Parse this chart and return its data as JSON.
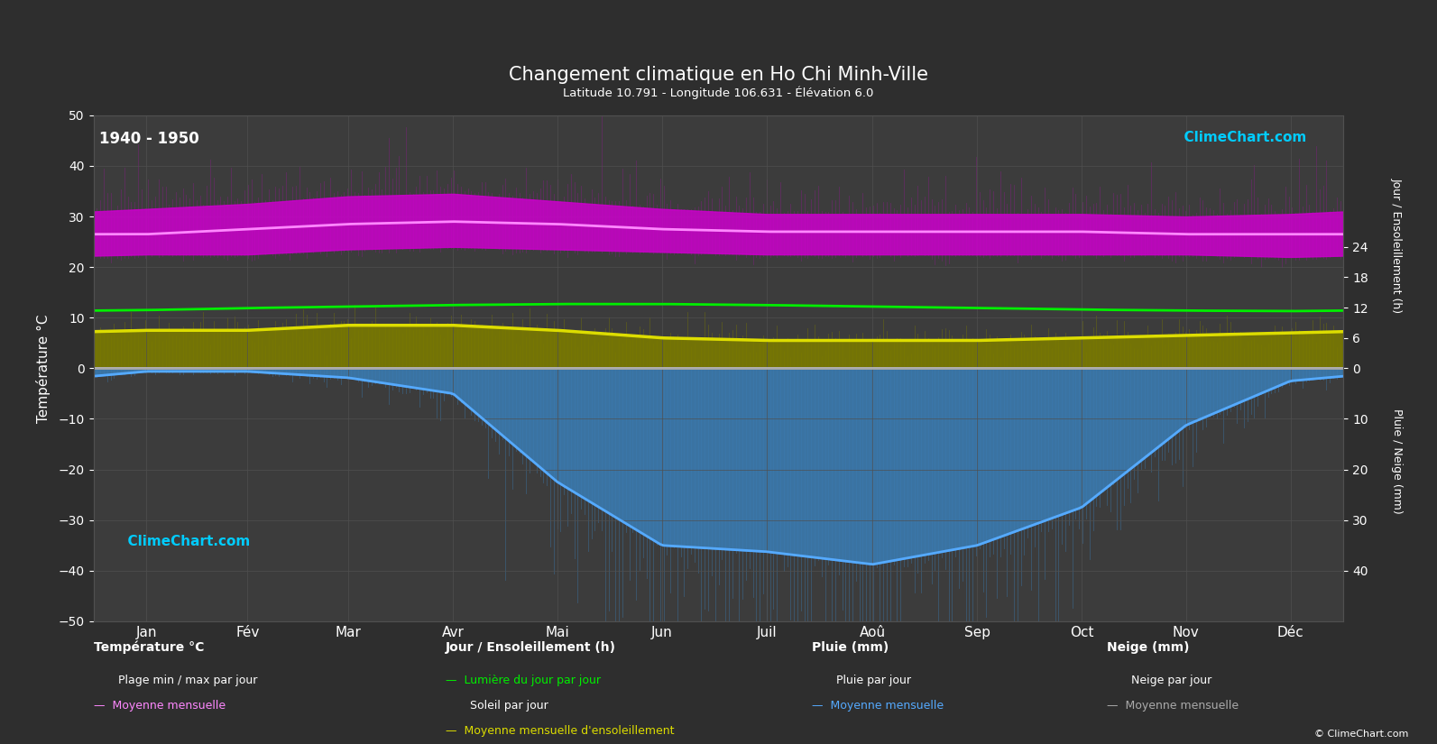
{
  "title": "Changement climatique en Ho Chi Minh-Ville",
  "subtitle": "Latitude 10.791 - Longitude 106.631 Élévation 6.0",
  "subtitle2": "Latitude 10.791 - Longitude 106.631 - Élévation 6.0",
  "year_range": "1940 - 1950",
  "background_color": "#2e2e2e",
  "plot_bg_color": "#3c3c3c",
  "grid_color": "#505050",
  "text_color": "#ffffff",
  "months": [
    "Jan",
    "Fév",
    "Mar",
    "Avr",
    "Mai",
    "Jun",
    "Juil",
    "Aoû",
    "Sep",
    "Oct",
    "Nov",
    "Déc"
  ],
  "temp_min_monthly": [
    22.5,
    22.5,
    23.5,
    24.0,
    23.5,
    23.0,
    22.5,
    22.5,
    22.5,
    22.5,
    22.5,
    22.0
  ],
  "temp_max_monthly": [
    31.5,
    32.5,
    34.0,
    34.5,
    33.0,
    31.5,
    30.5,
    30.5,
    30.5,
    30.5,
    30.0,
    30.5
  ],
  "temp_mean_monthly": [
    26.5,
    27.5,
    28.5,
    29.0,
    28.5,
    27.5,
    27.0,
    27.0,
    27.0,
    27.0,
    26.5,
    26.5
  ],
  "daylight_monthly": [
    11.5,
    11.9,
    12.2,
    12.5,
    12.7,
    12.7,
    12.5,
    12.2,
    11.9,
    11.6,
    11.4,
    11.3
  ],
  "sun_hours_monthly": [
    7.5,
    7.5,
    8.5,
    8.5,
    7.5,
    6.0,
    5.5,
    5.5,
    5.5,
    6.0,
    6.5,
    7.0
  ],
  "rain_monthly_mm": [
    5,
    5,
    15,
    40,
    180,
    280,
    290,
    310,
    280,
    220,
    90,
    20
  ],
  "snow_monthly_mm": [
    0,
    0,
    0,
    0,
    0,
    0,
    0,
    0,
    0,
    0,
    0,
    0
  ],
  "rain_scale": 8.0,
  "snow_scale": 8.0,
  "color_temp_fill": "#cc00cc",
  "color_temp_mean_line": "#ff88ff",
  "color_daylight_line": "#00ee00",
  "color_sun_fill": "#7a7a00",
  "color_sun_line": "#dddd00",
  "color_rain_fill": "#3a7db5",
  "color_rain_line": "#55aaff",
  "color_snow_fill": "#888898",
  "color_snow_line": "#aaaaaa"
}
